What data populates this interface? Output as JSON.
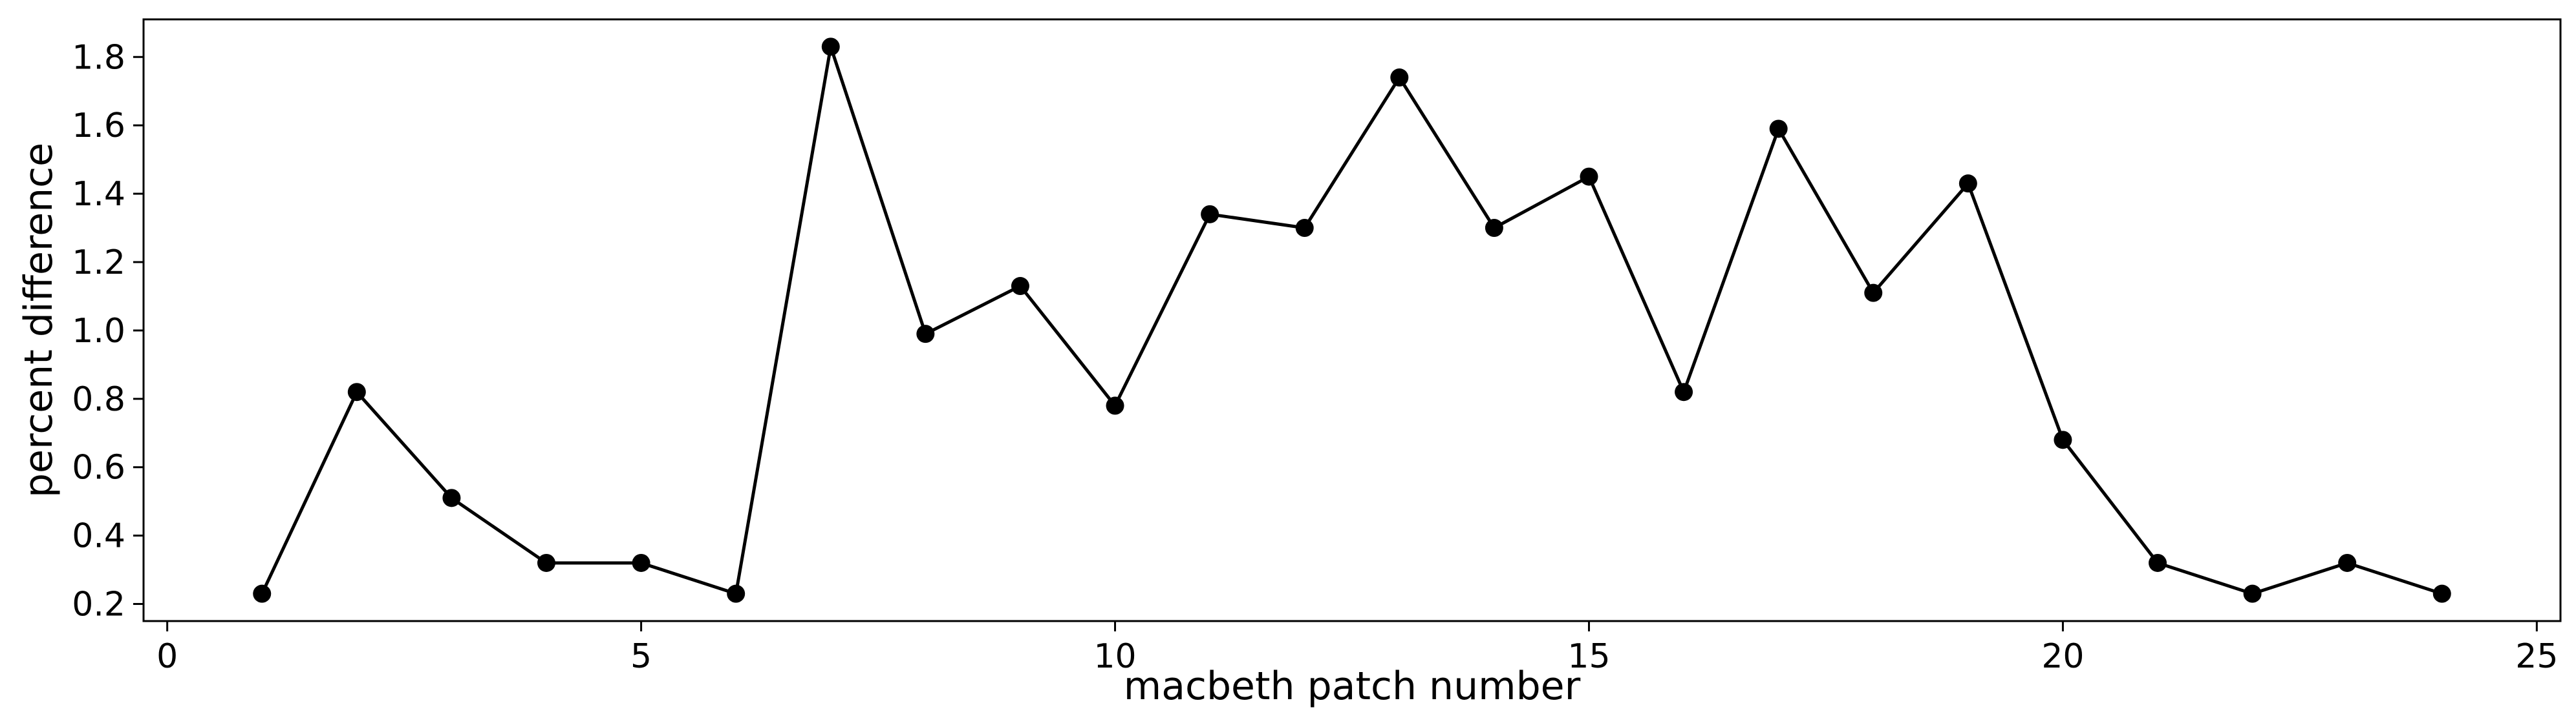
{
  "chart_data": {
    "type": "line",
    "title": "",
    "xlabel": "macbeth patch number",
    "ylabel": "percent difference",
    "xlim": [
      -0.25,
      25.25
    ],
    "ylim": [
      0.15,
      1.91
    ],
    "xticks": [
      0,
      5,
      10,
      15,
      20,
      25
    ],
    "xtick_labels": [
      "0",
      "5",
      "10",
      "15",
      "20",
      "25"
    ],
    "yticks": [
      0.2,
      0.4,
      0.6,
      0.8,
      1.0,
      1.2,
      1.4,
      1.6,
      1.8
    ],
    "ytick_labels": [
      "0.2",
      "0.4",
      "0.6",
      "0.8",
      "1.0",
      "1.2",
      "1.4",
      "1.6",
      "1.8"
    ],
    "grid": false,
    "legend": "none",
    "line_color": "#000000",
    "marker": "circle",
    "series": [
      {
        "x": [
          1,
          2,
          3,
          4,
          5,
          6,
          7,
          8,
          9,
          10,
          11,
          12,
          13,
          14,
          15,
          16,
          17,
          18,
          19,
          20,
          21,
          22,
          23,
          24
        ],
        "y": [
          0.23,
          0.82,
          0.51,
          0.32,
          0.32,
          0.23,
          1.83,
          0.99,
          1.13,
          0.78,
          1.34,
          1.3,
          1.74,
          1.3,
          1.45,
          0.82,
          1.59,
          1.11,
          1.43,
          0.68,
          0.32,
          0.23,
          0.32,
          0.23
        ]
      }
    ]
  }
}
